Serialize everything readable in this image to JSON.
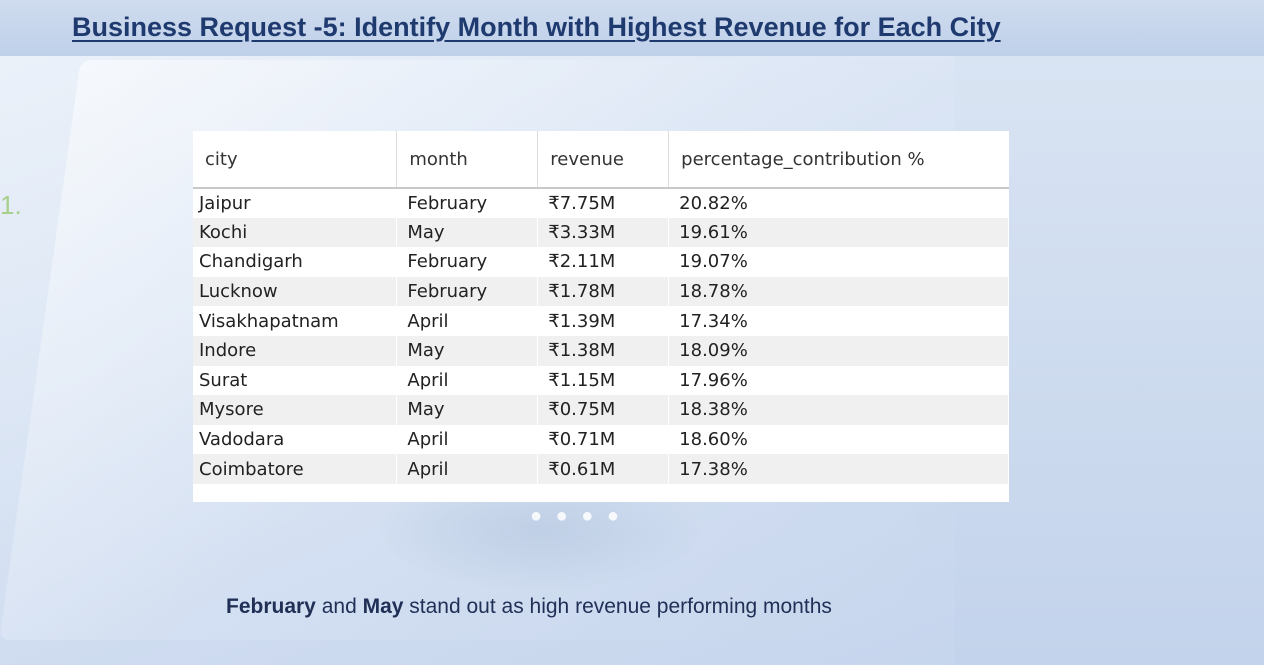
{
  "header": {
    "title": "Business Request -5: Identify Month with Highest Revenue for Each City"
  },
  "list_marker": "1.",
  "table": {
    "columns": [
      "city",
      "month",
      "revenue",
      "percentage_contribution %"
    ],
    "rows": [
      {
        "city": "Jaipur",
        "month": "February",
        "revenue": "₹7.75M",
        "pct": "20.82%"
      },
      {
        "city": "Kochi",
        "month": "May",
        "revenue": "₹3.33M",
        "pct": "19.61%"
      },
      {
        "city": "Chandigarh",
        "month": "February",
        "revenue": "₹2.11M",
        "pct": "19.07%"
      },
      {
        "city": "Lucknow",
        "month": "February",
        "revenue": "₹1.78M",
        "pct": "18.78%"
      },
      {
        "city": "Visakhapatnam",
        "month": "April",
        "revenue": "₹1.39M",
        "pct": "17.34%"
      },
      {
        "city": "Indore",
        "month": "May",
        "revenue": "₹1.38M",
        "pct": "18.09%"
      },
      {
        "city": "Surat",
        "month": "April",
        "revenue": "₹1.15M",
        "pct": "17.96%"
      },
      {
        "city": "Mysore",
        "month": "May",
        "revenue": "₹0.75M",
        "pct": "18.38%"
      },
      {
        "city": "Vadodara",
        "month": "April",
        "revenue": "₹0.71M",
        "pct": "18.60%"
      },
      {
        "city": "Coimbatore",
        "month": "April",
        "revenue": "₹0.61M",
        "pct": "17.38%"
      }
    ]
  },
  "insight": {
    "month1": "February",
    "joiner": " and ",
    "month2": "May",
    "rest": " stand out as high revenue performing months"
  },
  "colors": {
    "title": "#1f3a6e",
    "marker": "#a8d08d",
    "insight_text": "#1f2f55"
  }
}
